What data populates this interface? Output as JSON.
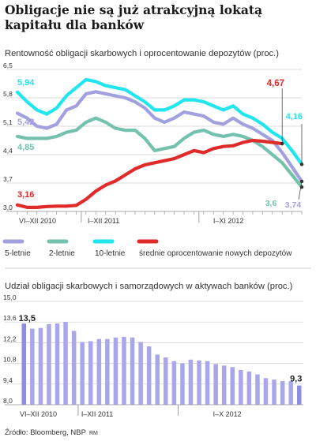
{
  "title": "Obligacje nie są już atrakcyjną lokatą kapitału dla banków",
  "source": "Źródło: Bloomberg, NBP",
  "author": "RM",
  "colors": {
    "5-letnie": "#a3a0df",
    "2-letnie": "#74c2ae",
    "10-letnie": "#22e6ee",
    "deposits": "#e12a2a",
    "bars": "#a9a6ea"
  },
  "chart_data": [
    {
      "type": "line",
      "title": "Rentowność obligacji skarbowych i oprocentowanie depozytów (proc.)",
      "yticks": [
        "6,5",
        "5,8",
        "5,1",
        "4,4",
        "3,7",
        "3,0"
      ],
      "ylim": [
        3.0,
        6.5
      ],
      "xticks": [
        "VI–XII 2010",
        "I–XII 2011",
        "I–XI 2012"
      ],
      "x": [
        "2010-06",
        "2010-07",
        "2010-08",
        "2010-09",
        "2010-10",
        "2010-11",
        "2010-12",
        "2011-01",
        "2011-02",
        "2011-03",
        "2011-04",
        "2011-05",
        "2011-06",
        "2011-07",
        "2011-08",
        "2011-09",
        "2011-10",
        "2011-11",
        "2011-12",
        "2012-01",
        "2012-02",
        "2012-03",
        "2012-04",
        "2012-05",
        "2012-06",
        "2012-07",
        "2012-08",
        "2012-09",
        "2012-10",
        "2012-11"
      ],
      "series": [
        {
          "name": "5-letnie",
          "color": "#a3a0df",
          "values": [
            5.42,
            5.3,
            5.1,
            5.05,
            5.15,
            5.5,
            5.6,
            5.9,
            5.95,
            5.9,
            5.85,
            5.8,
            5.7,
            5.55,
            5.3,
            5.2,
            5.3,
            5.45,
            5.4,
            5.35,
            5.2,
            5.15,
            5.3,
            5.15,
            5.05,
            4.9,
            4.75,
            4.45,
            4.1,
            3.74
          ]
        },
        {
          "name": "2-letnie",
          "color": "#74c2ae",
          "values": [
            4.85,
            4.8,
            4.8,
            4.8,
            4.85,
            4.95,
            5.0,
            5.2,
            5.3,
            5.2,
            5.05,
            5.0,
            5.0,
            4.8,
            4.5,
            4.55,
            4.6,
            4.8,
            4.95,
            5.0,
            4.9,
            4.85,
            4.9,
            4.85,
            4.75,
            4.6,
            4.4,
            4.2,
            3.9,
            3.6
          ]
        },
        {
          "name": "10-letnie",
          "color": "#22e6ee",
          "values": [
            5.94,
            5.7,
            5.5,
            5.4,
            5.55,
            5.85,
            6.05,
            6.25,
            6.2,
            6.1,
            6.05,
            6.0,
            5.85,
            5.7,
            5.5,
            5.5,
            5.6,
            5.75,
            5.75,
            5.7,
            5.6,
            5.5,
            5.6,
            5.4,
            5.3,
            5.15,
            4.95,
            4.8,
            4.5,
            4.16
          ]
        },
        {
          "name": "średnie oprocentowanie nowych depozytów",
          "color": "#e12a2a",
          "values": [
            3.16,
            3.1,
            3.1,
            3.12,
            3.13,
            3.13,
            3.15,
            3.3,
            3.5,
            3.65,
            3.75,
            3.9,
            4.05,
            4.15,
            4.2,
            4.25,
            4.3,
            4.4,
            4.5,
            4.45,
            4.55,
            4.6,
            4.62,
            4.7,
            4.75,
            4.73,
            4.7,
            4.67,
            null,
            null
          ]
        }
      ],
      "labels": {
        "5-letnie-start": "5,42",
        "2-letnie-start": "4,85",
        "10-letnie-start": "5,94",
        "deposits-start": "3,16",
        "deposits-end": "4,67",
        "10-letnie-end": "4,16",
        "2-letnie-end": "3,6",
        "5-letnie-end": "3,74"
      }
    },
    {
      "type": "bar",
      "title": "Udział obligacji skarbowych i samorządowych w aktywach banków (proc.)",
      "yticks": [
        "15,0",
        "13,6",
        "12,2",
        "10,8",
        "9,4",
        "8,0"
      ],
      "ylim": [
        8.0,
        15.0
      ],
      "xticks": [
        "VI–XII 2010",
        "I–XII 2011",
        "I–X 2012"
      ],
      "values": [
        13.5,
        13.15,
        13.2,
        13.45,
        13.5,
        13.6,
        13.0,
        12.25,
        12.3,
        12.45,
        12.45,
        12.55,
        12.6,
        12.55,
        12.25,
        11.95,
        11.4,
        11.2,
        10.95,
        10.8,
        11.05,
        11.0,
        10.95,
        10.75,
        10.65,
        10.55,
        10.35,
        10.25,
        10.05,
        9.8,
        9.7,
        9.6,
        9.6,
        9.3
      ],
      "labels": {
        "start": "13,5",
        "end": "9,3"
      }
    }
  ]
}
